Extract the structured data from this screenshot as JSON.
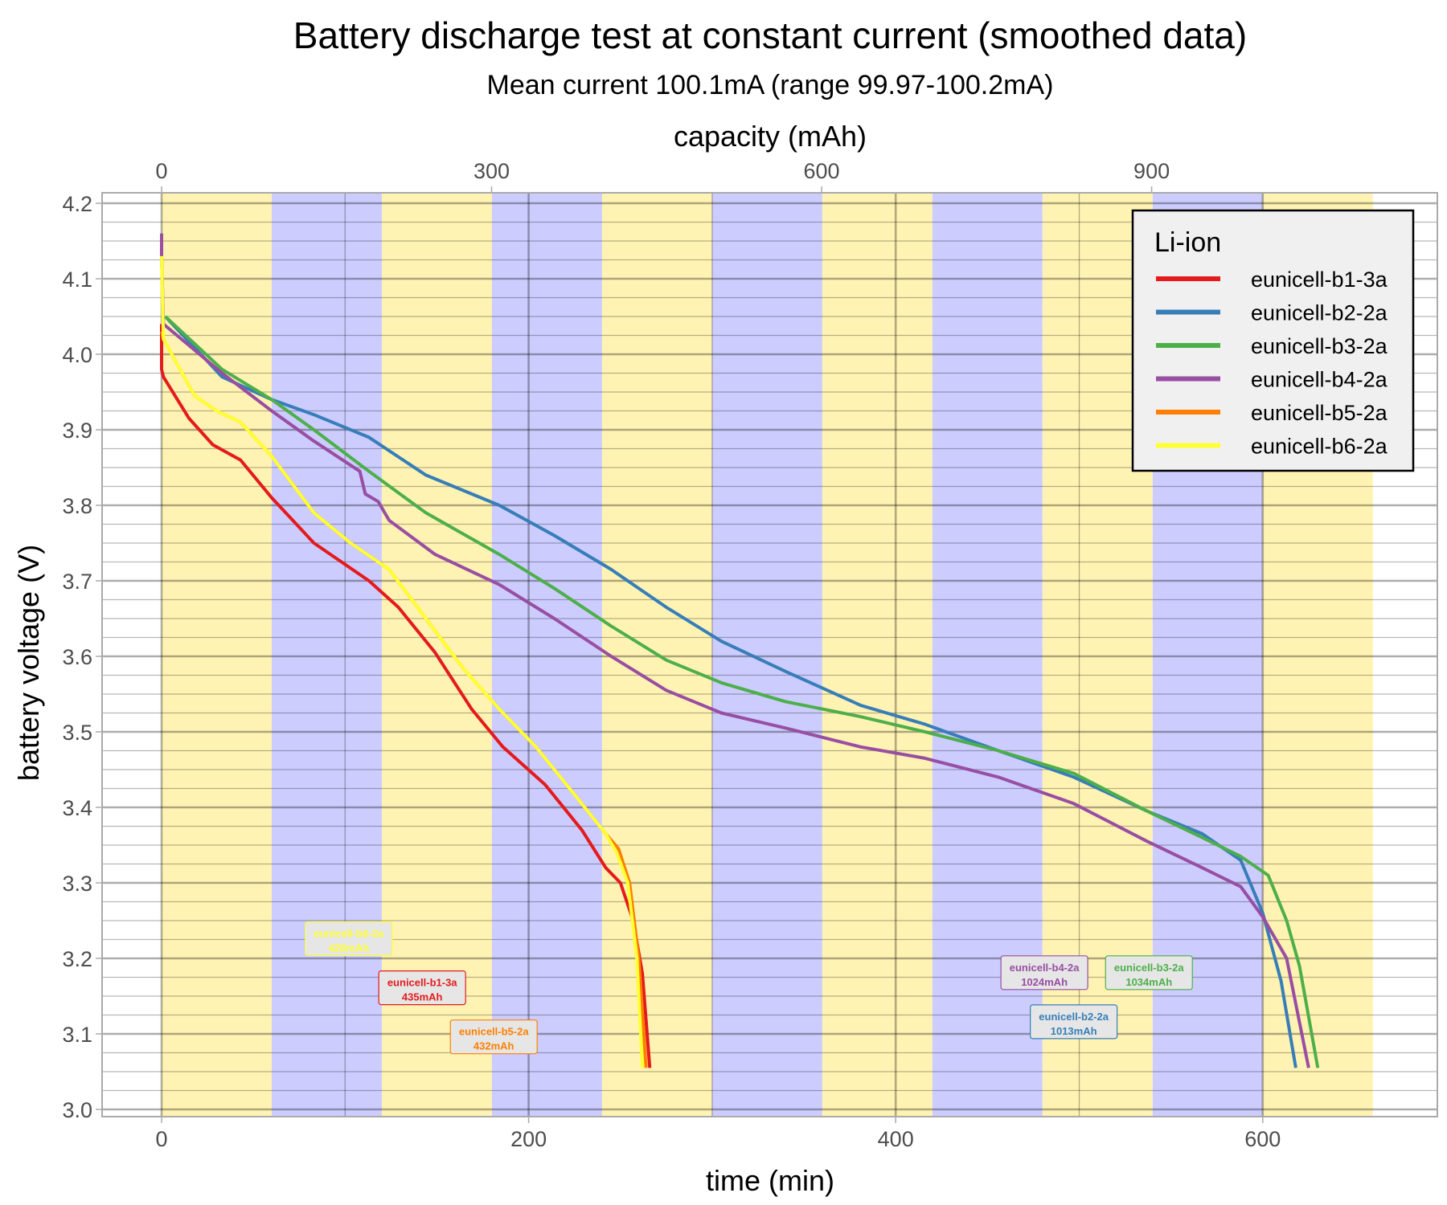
{
  "chart_data": {
    "type": "line",
    "title": "Battery discharge test at constant current (smoothed data)",
    "subtitle": "Mean current 100.1mA (range 99.97-100.2mA)",
    "xlabel": "time (min)",
    "ylabel": "battery voltage (V)",
    "x2label": "capacity (mAh)",
    "xlim": [
      -33,
      693
    ],
    "ylim": [
      3.0,
      4.2
    ],
    "x_ticks": [
      0,
      200,
      400,
      600
    ],
    "x2_ticks": [
      0,
      300,
      600,
      900
    ],
    "y_ticks": [
      "3.0",
      "3.1",
      "3.2",
      "3.3",
      "3.4",
      "3.5",
      "3.6",
      "3.7",
      "3.8",
      "3.9",
      "4.0",
      "4.1",
      "4.2"
    ],
    "grid": true,
    "background_bands": {
      "width_min": 60,
      "colors": [
        "#fff3b3",
        "#ccccff"
      ],
      "end_min": 660
    },
    "legend": {
      "title": "Li-ion",
      "placement": "top-right"
    },
    "series": [
      {
        "name": "eunicell-b1-3a",
        "color": "#e41a1c",
        "capacity_label": "435mAh",
        "label_at": [
          142,
          3.16
        ],
        "points": [
          [
            0,
            4.04
          ],
          [
            0,
            3.98
          ],
          [
            1,
            3.97
          ],
          [
            15,
            3.915
          ],
          [
            28,
            3.88
          ],
          [
            43,
            3.86
          ],
          [
            60,
            3.81
          ],
          [
            83,
            3.75
          ],
          [
            113,
            3.7
          ],
          [
            129,
            3.665
          ],
          [
            149,
            3.605
          ],
          [
            169,
            3.53
          ],
          [
            186,
            3.48
          ],
          [
            209,
            3.43
          ],
          [
            229,
            3.37
          ],
          [
            242,
            3.32
          ],
          [
            250,
            3.3
          ],
          [
            257,
            3.25
          ],
          [
            262,
            3.18
          ],
          [
            266,
            3.055
          ]
        ]
      },
      {
        "name": "eunicell-b2-2a",
        "color": "#377eb8",
        "capacity_label": "1013mAh",
        "label_at": [
          497,
          3.115
        ],
        "points": [
          [
            2,
            4.05
          ],
          [
            33,
            3.97
          ],
          [
            60,
            3.94
          ],
          [
            83,
            3.92
          ],
          [
            113,
            3.89
          ],
          [
            144,
            3.84
          ],
          [
            184,
            3.8
          ],
          [
            214,
            3.76
          ],
          [
            245,
            3.715
          ],
          [
            275,
            3.665
          ],
          [
            305,
            3.62
          ],
          [
            340,
            3.58
          ],
          [
            381,
            3.535
          ],
          [
            416,
            3.51
          ],
          [
            456,
            3.475
          ],
          [
            497,
            3.44
          ],
          [
            537,
            3.395
          ],
          [
            567,
            3.365
          ],
          [
            588,
            3.33
          ],
          [
            600,
            3.26
          ],
          [
            610,
            3.17
          ],
          [
            618,
            3.055
          ]
        ]
      },
      {
        "name": "eunicell-b3-2a",
        "color": "#4daf4a",
        "capacity_label": "1034mAh",
        "label_at": [
          538,
          3.18
        ],
        "points": [
          [
            2,
            4.05
          ],
          [
            33,
            3.98
          ],
          [
            60,
            3.94
          ],
          [
            83,
            3.9
          ],
          [
            113,
            3.845
          ],
          [
            144,
            3.79
          ],
          [
            184,
            3.735
          ],
          [
            214,
            3.69
          ],
          [
            245,
            3.64
          ],
          [
            275,
            3.595
          ],
          [
            305,
            3.565
          ],
          [
            340,
            3.54
          ],
          [
            381,
            3.52
          ],
          [
            416,
            3.5
          ],
          [
            456,
            3.475
          ],
          [
            497,
            3.445
          ],
          [
            537,
            3.395
          ],
          [
            567,
            3.36
          ],
          [
            588,
            3.335
          ],
          [
            603,
            3.31
          ],
          [
            613,
            3.25
          ],
          [
            620,
            3.19
          ],
          [
            630,
            3.055
          ]
        ]
      },
      {
        "name": "eunicell-b4-2a",
        "color": "#984ea3",
        "capacity_label": "1024mAh",
        "label_at": [
          481,
          3.18
        ],
        "points": [
          [
            0,
            4.16
          ],
          [
            0,
            4.13
          ],
          [
            1,
            4.04
          ],
          [
            33,
            3.975
          ],
          [
            60,
            3.925
          ],
          [
            83,
            3.885
          ],
          [
            108,
            3.845
          ],
          [
            111,
            3.815
          ],
          [
            118,
            3.805
          ],
          [
            124,
            3.78
          ],
          [
            149,
            3.735
          ],
          [
            184,
            3.695
          ],
          [
            214,
            3.65
          ],
          [
            245,
            3.6
          ],
          [
            275,
            3.555
          ],
          [
            305,
            3.525
          ],
          [
            340,
            3.505
          ],
          [
            381,
            3.48
          ],
          [
            416,
            3.465
          ],
          [
            456,
            3.44
          ],
          [
            497,
            3.405
          ],
          [
            537,
            3.355
          ],
          [
            567,
            3.32
          ],
          [
            588,
            3.295
          ],
          [
            600,
            3.255
          ],
          [
            613,
            3.2
          ],
          [
            625,
            3.055
          ]
        ]
      },
      {
        "name": "eunicell-b5-2a",
        "color": "#ff7f00",
        "capacity_label": "432mAh",
        "label_at": [
          181,
          3.095
        ],
        "points": [
          [
            0,
            4.03
          ],
          [
            1,
            4.02
          ],
          [
            18,
            3.945
          ],
          [
            30,
            3.925
          ],
          [
            43,
            3.91
          ],
          [
            60,
            3.865
          ],
          [
            83,
            3.79
          ],
          [
            103,
            3.75
          ],
          [
            124,
            3.715
          ],
          [
            144,
            3.65
          ],
          [
            164,
            3.585
          ],
          [
            184,
            3.53
          ],
          [
            204,
            3.48
          ],
          [
            224,
            3.42
          ],
          [
            242,
            3.365
          ],
          [
            249,
            3.345
          ],
          [
            255,
            3.3
          ],
          [
            260,
            3.2
          ],
          [
            264,
            3.055
          ]
        ]
      },
      {
        "name": "eunicell-b6-2a",
        "color": "#ffff33",
        "capacity_label": "428mAh",
        "label_at": [
          102,
          3.225
        ],
        "points": [
          [
            0,
            4.13
          ],
          [
            1,
            4.02
          ],
          [
            18,
            3.945
          ],
          [
            30,
            3.925
          ],
          [
            43,
            3.91
          ],
          [
            60,
            3.865
          ],
          [
            83,
            3.79
          ],
          [
            103,
            3.75
          ],
          [
            124,
            3.715
          ],
          [
            144,
            3.65
          ],
          [
            164,
            3.585
          ],
          [
            184,
            3.53
          ],
          [
            204,
            3.48
          ],
          [
            224,
            3.42
          ],
          [
            242,
            3.365
          ],
          [
            248,
            3.34
          ],
          [
            254,
            3.3
          ],
          [
            259,
            3.2
          ],
          [
            262,
            3.055
          ]
        ]
      }
    ]
  }
}
